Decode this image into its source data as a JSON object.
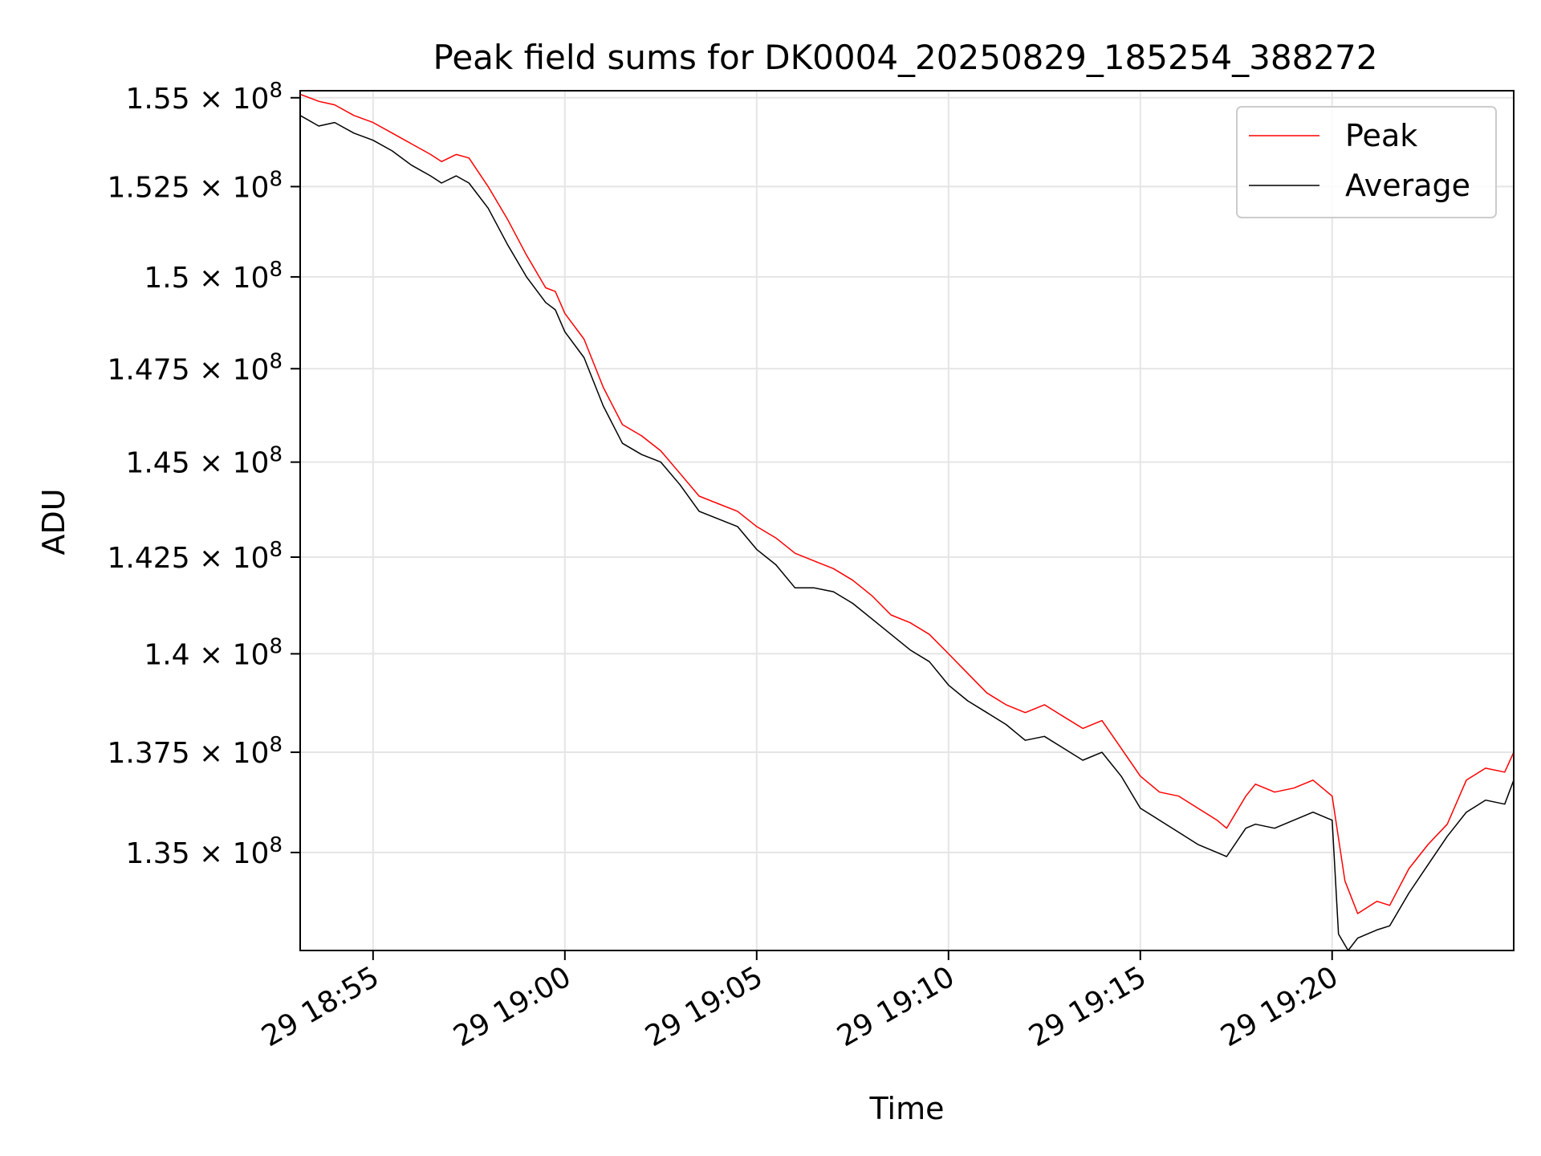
{
  "chart_data": {
    "type": "line",
    "title": "Peak field sums for DK0004_20250829_185254_388272",
    "xlabel": "Time",
    "ylabel": "ADU",
    "x_range": [
      "2025-08-29T18:53:06",
      "2025-08-29T19:24:44"
    ],
    "y_log_scale": true,
    "ylim": [
      132600000,
      155200000
    ],
    "x_ticks": [
      {
        "t": "2025-08-29T18:55:00",
        "label": "29 18:55"
      },
      {
        "t": "2025-08-29T19:00:00",
        "label": "29 19:00"
      },
      {
        "t": "2025-08-29T19:05:00",
        "label": "29 19:05"
      },
      {
        "t": "2025-08-29T19:10:00",
        "label": "29 19:10"
      },
      {
        "t": "2025-08-29T19:15:00",
        "label": "29 19:15"
      },
      {
        "t": "2025-08-29T19:20:00",
        "label": "29 19:20"
      }
    ],
    "y_ticks": [
      {
        "v": 155000000,
        "mant": "1.55",
        "exp": "8"
      },
      {
        "v": 152500000,
        "mant": "1.525",
        "exp": "8"
      },
      {
        "v": 150000000,
        "mant": "1.5",
        "exp": "8"
      },
      {
        "v": 147500000,
        "mant": "1.475",
        "exp": "8"
      },
      {
        "v": 145000000,
        "mant": "1.45",
        "exp": "8"
      },
      {
        "v": 142500000,
        "mant": "1.425",
        "exp": "8"
      },
      {
        "v": 140000000,
        "mant": "1.4",
        "exp": "8"
      },
      {
        "v": 137500000,
        "mant": "1.375",
        "exp": "8"
      },
      {
        "v": 135000000,
        "mant": "1.35",
        "exp": "8"
      }
    ],
    "grid": true,
    "legend_position": "top-right",
    "series": [
      {
        "name": "Peak",
        "color": "#ff0000",
        "points": [
          [
            "2025-08-29T18:53:06",
            155100000
          ],
          [
            "2025-08-29T18:53:35",
            154900000
          ],
          [
            "2025-08-29T18:54:00",
            154800000
          ],
          [
            "2025-08-29T18:54:30",
            154500000
          ],
          [
            "2025-08-29T18:55:00",
            154300000
          ],
          [
            "2025-08-29T18:55:30",
            154000000
          ],
          [
            "2025-08-29T18:56:00",
            153700000
          ],
          [
            "2025-08-29T18:56:30",
            153400000
          ],
          [
            "2025-08-29T18:56:47",
            153200000
          ],
          [
            "2025-08-29T18:57:10",
            153400000
          ],
          [
            "2025-08-29T18:57:30",
            153300000
          ],
          [
            "2025-08-29T18:58:00",
            152500000
          ],
          [
            "2025-08-29T18:58:30",
            151600000
          ],
          [
            "2025-08-29T18:59:00",
            150600000
          ],
          [
            "2025-08-29T18:59:30",
            149700000
          ],
          [
            "2025-08-29T18:59:45",
            149600000
          ],
          [
            "2025-08-29T19:00:00",
            149000000
          ],
          [
            "2025-08-29T19:00:30",
            148300000
          ],
          [
            "2025-08-29T19:01:00",
            147000000
          ],
          [
            "2025-08-29T19:01:30",
            146000000
          ],
          [
            "2025-08-29T19:02:00",
            145700000
          ],
          [
            "2025-08-29T19:02:30",
            145300000
          ],
          [
            "2025-08-29T19:03:00",
            144700000
          ],
          [
            "2025-08-29T19:03:30",
            144100000
          ],
          [
            "2025-08-29T19:04:00",
            143900000
          ],
          [
            "2025-08-29T19:04:30",
            143700000
          ],
          [
            "2025-08-29T19:05:00",
            143300000
          ],
          [
            "2025-08-29T19:05:30",
            143000000
          ],
          [
            "2025-08-29T19:06:00",
            142600000
          ],
          [
            "2025-08-29T19:06:30",
            142400000
          ],
          [
            "2025-08-29T19:07:00",
            142200000
          ],
          [
            "2025-08-29T19:07:30",
            141900000
          ],
          [
            "2025-08-29T19:08:00",
            141500000
          ],
          [
            "2025-08-29T19:08:30",
            141000000
          ],
          [
            "2025-08-29T19:09:00",
            140800000
          ],
          [
            "2025-08-29T19:09:30",
            140500000
          ],
          [
            "2025-08-29T19:10:00",
            140000000
          ],
          [
            "2025-08-29T19:10:30",
            139500000
          ],
          [
            "2025-08-29T19:11:00",
            139000000
          ],
          [
            "2025-08-29T19:11:30",
            138700000
          ],
          [
            "2025-08-29T19:12:00",
            138500000
          ],
          [
            "2025-08-29T19:12:30",
            138700000
          ],
          [
            "2025-08-29T19:13:00",
            138400000
          ],
          [
            "2025-08-29T19:13:30",
            138100000
          ],
          [
            "2025-08-29T19:14:00",
            138300000
          ],
          [
            "2025-08-29T19:14:30",
            137600000
          ],
          [
            "2025-08-29T19:15:00",
            136900000
          ],
          [
            "2025-08-29T19:15:30",
            136500000
          ],
          [
            "2025-08-29T19:16:00",
            136400000
          ],
          [
            "2025-08-29T19:16:30",
            136100000
          ],
          [
            "2025-08-29T19:17:00",
            135800000
          ],
          [
            "2025-08-29T19:17:15",
            135600000
          ],
          [
            "2025-08-29T19:17:45",
            136400000
          ],
          [
            "2025-08-29T19:18:00",
            136700000
          ],
          [
            "2025-08-29T19:18:30",
            136500000
          ],
          [
            "2025-08-29T19:19:00",
            136600000
          ],
          [
            "2025-08-29T19:19:30",
            136800000
          ],
          [
            "2025-08-29T19:20:00",
            136400000
          ],
          [
            "2025-08-29T19:20:20",
            134300000
          ],
          [
            "2025-08-29T19:20:40",
            133500000
          ],
          [
            "2025-08-29T19:21:10",
            133800000
          ],
          [
            "2025-08-29T19:21:30",
            133700000
          ],
          [
            "2025-08-29T19:22:00",
            134600000
          ],
          [
            "2025-08-29T19:22:30",
            135200000
          ],
          [
            "2025-08-29T19:23:00",
            135700000
          ],
          [
            "2025-08-29T19:23:30",
            136800000
          ],
          [
            "2025-08-29T19:24:00",
            137100000
          ],
          [
            "2025-08-29T19:24:30",
            137000000
          ],
          [
            "2025-08-29T19:24:44",
            137500000
          ]
        ]
      },
      {
        "name": "Average",
        "color": "#000000",
        "points": [
          [
            "2025-08-29T18:53:06",
            154500000
          ],
          [
            "2025-08-29T18:53:35",
            154200000
          ],
          [
            "2025-08-29T18:54:00",
            154300000
          ],
          [
            "2025-08-29T18:54:30",
            154000000
          ],
          [
            "2025-08-29T18:55:00",
            153800000
          ],
          [
            "2025-08-29T18:55:30",
            153500000
          ],
          [
            "2025-08-29T18:56:00",
            153100000
          ],
          [
            "2025-08-29T18:56:30",
            152800000
          ],
          [
            "2025-08-29T18:56:47",
            152600000
          ],
          [
            "2025-08-29T18:57:10",
            152800000
          ],
          [
            "2025-08-29T18:57:30",
            152600000
          ],
          [
            "2025-08-29T18:58:00",
            151900000
          ],
          [
            "2025-08-29T18:58:30",
            150900000
          ],
          [
            "2025-08-29T18:59:00",
            150000000
          ],
          [
            "2025-08-29T18:59:30",
            149300000
          ],
          [
            "2025-08-29T18:59:45",
            149100000
          ],
          [
            "2025-08-29T19:00:00",
            148500000
          ],
          [
            "2025-08-29T19:00:30",
            147800000
          ],
          [
            "2025-08-29T19:01:00",
            146500000
          ],
          [
            "2025-08-29T19:01:30",
            145500000
          ],
          [
            "2025-08-29T19:02:00",
            145200000
          ],
          [
            "2025-08-29T19:02:30",
            145000000
          ],
          [
            "2025-08-29T19:03:00",
            144400000
          ],
          [
            "2025-08-29T19:03:30",
            143700000
          ],
          [
            "2025-08-29T19:04:00",
            143500000
          ],
          [
            "2025-08-29T19:04:30",
            143300000
          ],
          [
            "2025-08-29T19:05:00",
            142700000
          ],
          [
            "2025-08-29T19:05:30",
            142300000
          ],
          [
            "2025-08-29T19:06:00",
            141700000
          ],
          [
            "2025-08-29T19:06:30",
            141700000
          ],
          [
            "2025-08-29T19:07:00",
            141600000
          ],
          [
            "2025-08-29T19:07:30",
            141300000
          ],
          [
            "2025-08-29T19:08:00",
            140900000
          ],
          [
            "2025-08-29T19:08:30",
            140500000
          ],
          [
            "2025-08-29T19:09:00",
            140100000
          ],
          [
            "2025-08-29T19:09:30",
            139800000
          ],
          [
            "2025-08-29T19:10:00",
            139200000
          ],
          [
            "2025-08-29T19:10:30",
            138800000
          ],
          [
            "2025-08-29T19:11:00",
            138500000
          ],
          [
            "2025-08-29T19:11:30",
            138200000
          ],
          [
            "2025-08-29T19:12:00",
            137800000
          ],
          [
            "2025-08-29T19:12:30",
            137900000
          ],
          [
            "2025-08-29T19:13:00",
            137600000
          ],
          [
            "2025-08-29T19:13:30",
            137300000
          ],
          [
            "2025-08-29T19:14:00",
            137500000
          ],
          [
            "2025-08-29T19:14:30",
            136900000
          ],
          [
            "2025-08-29T19:15:00",
            136100000
          ],
          [
            "2025-08-29T19:15:30",
            135800000
          ],
          [
            "2025-08-29T19:16:00",
            135500000
          ],
          [
            "2025-08-29T19:16:30",
            135200000
          ],
          [
            "2025-08-29T19:17:00",
            135000000
          ],
          [
            "2025-08-29T19:17:15",
            134900000
          ],
          [
            "2025-08-29T19:17:45",
            135600000
          ],
          [
            "2025-08-29T19:18:00",
            135700000
          ],
          [
            "2025-08-29T19:18:30",
            135600000
          ],
          [
            "2025-08-29T19:19:00",
            135800000
          ],
          [
            "2025-08-29T19:19:30",
            136000000
          ],
          [
            "2025-08-29T19:20:00",
            135800000
          ],
          [
            "2025-08-29T19:20:10",
            133000000
          ],
          [
            "2025-08-29T19:20:25",
            132600000
          ],
          [
            "2025-08-29T19:20:40",
            132900000
          ],
          [
            "2025-08-29T19:21:10",
            133100000
          ],
          [
            "2025-08-29T19:21:30",
            133200000
          ],
          [
            "2025-08-29T19:22:00",
            134000000
          ],
          [
            "2025-08-29T19:22:30",
            134700000
          ],
          [
            "2025-08-29T19:23:00",
            135400000
          ],
          [
            "2025-08-29T19:23:30",
            136000000
          ],
          [
            "2025-08-29T19:24:00",
            136300000
          ],
          [
            "2025-08-29T19:24:30",
            136200000
          ],
          [
            "2025-08-29T19:24:44",
            136800000
          ]
        ]
      }
    ]
  }
}
